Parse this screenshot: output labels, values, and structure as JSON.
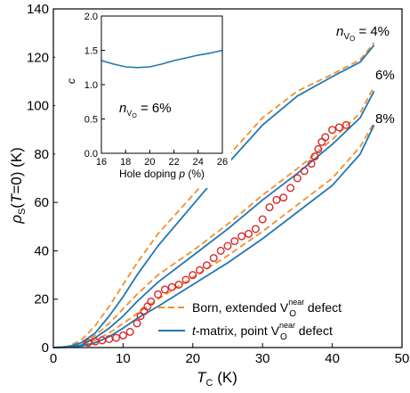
{
  "chart_data": [
    {
      "type": "line",
      "role": "main",
      "xlabel": "T_C (K)",
      "ylabel": "ρ_s(T=0) (K)",
      "xlim": [
        0,
        50
      ],
      "ylim": [
        0,
        140
      ],
      "xticks": [
        "0",
        "10",
        "20",
        "30",
        "40",
        "50"
      ],
      "yticks": [
        "0",
        "20",
        "40",
        "60",
        "80",
        "100",
        "120",
        "140"
      ],
      "curve_labels": [
        {
          "id": "lbl4",
          "text_main": "n",
          "text_sub": "VO",
          "text_rest": " = 4%"
        },
        {
          "id": "lbl6",
          "text": "6%"
        },
        {
          "id": "lbl8",
          "text": "8%"
        }
      ],
      "series": [
        {
          "name": "Born, extended V_O^near defect",
          "style": "dashed",
          "color": "#F28E2B",
          "curves": [
            {
              "x": [
                0,
                2,
                4,
                6,
                8,
                10,
                12,
                15,
                20,
                25,
                30,
                35,
                40,
                44,
                46
              ],
              "y": [
                0,
                0.5,
                3,
                9,
                17,
                26,
                35,
                47,
                63,
                79,
                95,
                106,
                113,
                119,
                126
              ]
            },
            {
              "x": [
                0,
                2,
                4,
                6,
                8,
                10,
                12,
                15,
                20,
                25,
                30,
                35,
                40,
                44,
                46
              ],
              "y": [
                0,
                0.3,
                1.5,
                5,
                10,
                16,
                22,
                30,
                40,
                51,
                63,
                74,
                86,
                97,
                108
              ]
            },
            {
              "x": [
                0,
                2,
                4,
                6,
                8,
                10,
                12,
                15,
                20,
                25,
                30,
                35,
                40,
                44,
                46
              ],
              "y": [
                0,
                0.2,
                1,
                3,
                6,
                10,
                14,
                20,
                29,
                38,
                48,
                59,
                70,
                83,
                93
              ]
            }
          ]
        },
        {
          "name": "t-matrix, point V_O^near defect",
          "style": "solid",
          "color": "#1F77B4",
          "curves": [
            {
              "x": [
                0,
                2,
                4,
                6,
                8,
                10,
                12,
                15,
                20,
                25,
                30,
                35,
                40,
                44,
                46
              ],
              "y": [
                0,
                0.3,
                2,
                6,
                13,
                21,
                30,
                42,
                59,
                76,
                92,
                104,
                112,
                118,
                125
              ]
            },
            {
              "x": [
                0,
                2,
                4,
                6,
                8,
                10,
                12,
                15,
                20,
                25,
                30,
                35,
                40,
                44,
                46
              ],
              "y": [
                0,
                0.2,
                1,
                4,
                8,
                13,
                19,
                27,
                38,
                49,
                61,
                72,
                84,
                95,
                106
              ]
            },
            {
              "x": [
                0,
                2,
                4,
                6,
                8,
                10,
                12,
                15,
                20,
                25,
                30,
                35,
                40,
                44,
                46
              ],
              "y": [
                0,
                0.1,
                0.6,
                2,
                4.5,
                8,
                12,
                17,
                26,
                35,
                45,
                56,
                67,
                80,
                92
              ]
            }
          ]
        }
      ],
      "points": {
        "color": "#D62728",
        "x": [
          5,
          6,
          7,
          8,
          9,
          10,
          11,
          12,
          12.5,
          13,
          13.5,
          14,
          15,
          16,
          17,
          18,
          19,
          20,
          21,
          22,
          23,
          24,
          25,
          26,
          27,
          28,
          29,
          30,
          31,
          32,
          33,
          34,
          35,
          36,
          37,
          37.5,
          38,
          38.5,
          39,
          40,
          41,
          42
        ],
        "y": [
          2,
          2.5,
          3,
          3.5,
          4,
          5,
          6.5,
          10,
          13,
          15,
          17,
          19,
          22,
          24,
          25,
          26,
          28,
          30,
          32,
          34,
          37,
          40,
          42,
          44,
          46,
          47,
          49,
          53,
          58,
          61,
          62,
          66,
          70,
          73,
          76,
          79,
          82,
          85,
          87,
          90,
          91,
          92
        ]
      },
      "legend_position": "bottom-right",
      "legend": [
        {
          "label_main": "Born, extended V",
          "label_sub": "O",
          "label_sup": "near",
          "label_rest": " defect"
        },
        {
          "label_italic": "t",
          "label_main": "-matrix, point V",
          "label_sub": "O",
          "label_sup": "near",
          "label_rest": " defect"
        }
      ]
    },
    {
      "type": "line",
      "role": "inset",
      "xlabel_main": "Hole doping ",
      "xlabel_italic": "p",
      "xlabel_rest": " (%)",
      "ylabel": "c",
      "xlim": [
        16,
        26
      ],
      "ylim": [
        0,
        2
      ],
      "xticks": [
        "16",
        "18",
        "20",
        "22",
        "24",
        "26"
      ],
      "yticks": [
        "0.0",
        "0.5",
        "1.0",
        "1.5",
        "2.0"
      ],
      "annotation": {
        "text_main": "n",
        "text_sub": "VO",
        "text_rest": " = 6%"
      },
      "series": [
        {
          "color": "#1F77B4",
          "x": [
            16,
            17,
            18,
            19,
            20,
            21,
            22,
            23,
            24,
            25,
            26
          ],
          "y": [
            1.35,
            1.3,
            1.26,
            1.25,
            1.26,
            1.3,
            1.35,
            1.39,
            1.43,
            1.46,
            1.5
          ]
        }
      ]
    }
  ]
}
